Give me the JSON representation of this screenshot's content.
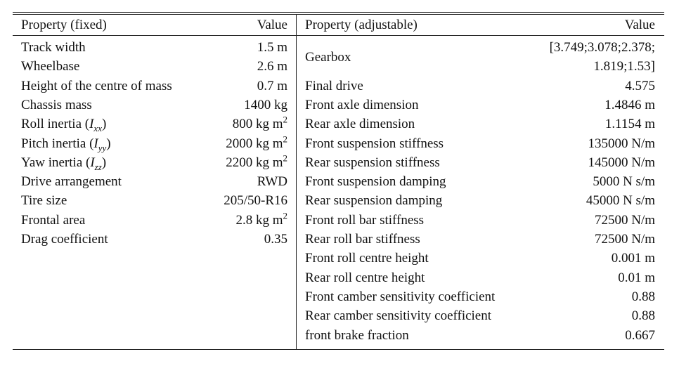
{
  "left": {
    "header": [
      "Property (fixed)",
      "Value"
    ],
    "rows": [
      [
        "Track width",
        "1.5 m"
      ],
      [
        "Wheelbase",
        "2.6 m"
      ],
      [
        "Height of the centre of mass",
        "0.7 m"
      ],
      [
        "Chassis mass",
        "1400 kg"
      ],
      [
        [
          "Roll inertia (",
          {
            "text": "I",
            "style": "italic"
          },
          {
            "text": "xx",
            "style": "sub"
          },
          ")"
        ],
        [
          "800 kg m",
          {
            "text": "2",
            "style": "sup"
          }
        ]
      ],
      [
        [
          "Pitch inertia (",
          {
            "text": "I",
            "style": "italic"
          },
          {
            "text": "yy",
            "style": "sub"
          },
          ")"
        ],
        [
          "2000 kg m",
          {
            "text": "2",
            "style": "sup"
          }
        ]
      ],
      [
        [
          "Yaw inertia (",
          {
            "text": "I",
            "style": "italic"
          },
          {
            "text": "zz",
            "style": "sub"
          },
          ")"
        ],
        [
          "2200 kg m",
          {
            "text": "2",
            "style": "sup"
          }
        ]
      ],
      [
        "Drive arrangement",
        "RWD"
      ],
      [
        "Tire size",
        "205/50-R16"
      ],
      [
        "Frontal area",
        [
          "2.8 kg m",
          {
            "text": "2",
            "style": "sup"
          }
        ]
      ],
      [
        "Drag coefficient",
        "0.35"
      ]
    ]
  },
  "right": {
    "header": [
      "Property (adjustable)",
      "Value"
    ],
    "rows": [
      [
        "Gearbox",
        [
          [
            "[3.749;3.078;2.378;"
          ],
          [
            "1.819;1.53]"
          ]
        ]
      ],
      [
        "Final drive",
        "4.575"
      ],
      [
        "Front axle dimension",
        "1.4846 m"
      ],
      [
        "Rear axle dimension",
        "1.1154 m"
      ],
      [
        "Front suspension stiffness",
        "135000 N/m"
      ],
      [
        "Rear suspension stiffness",
        "145000 N/m"
      ],
      [
        "Front suspension damping",
        "5000 N s/m"
      ],
      [
        "Rear suspension damping",
        "45000 N s/m"
      ],
      [
        "Front roll bar stiffness",
        "72500 N/m"
      ],
      [
        "Rear roll bar stiffness",
        "72500 N/m"
      ],
      [
        "Front roll centre height",
        "0.001 m"
      ],
      [
        "Rear roll centre height",
        "0.01 m"
      ],
      [
        "Front camber sensitivity coefficient",
        "0.88"
      ],
      [
        "Rear camber sensitivity coefficient",
        "0.88"
      ],
      [
        "front brake fraction",
        "0.667"
      ]
    ]
  }
}
